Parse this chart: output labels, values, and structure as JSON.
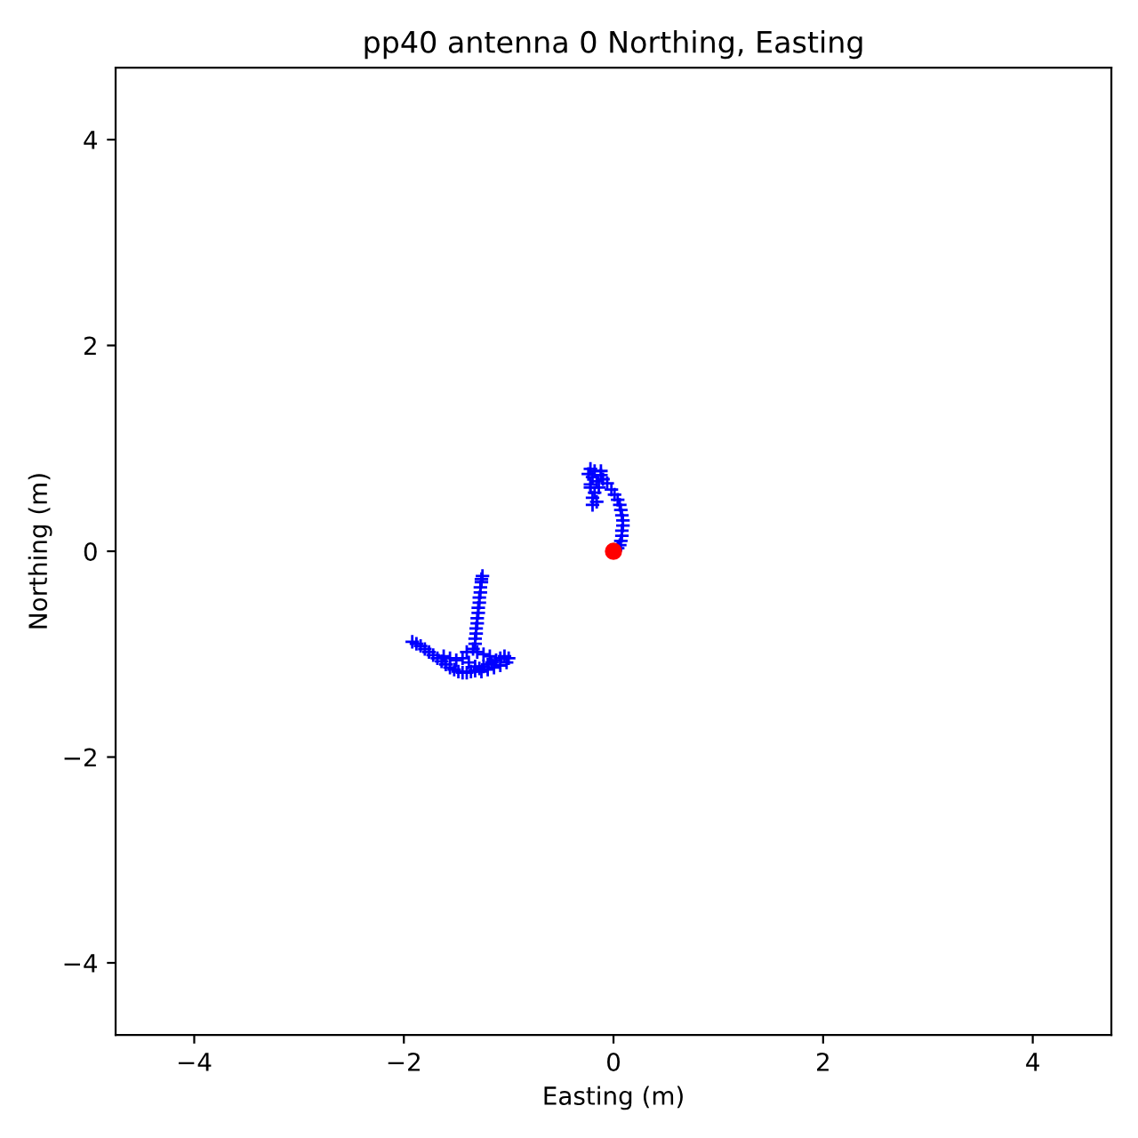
{
  "chart_data": {
    "type": "scatter",
    "title": "pp40 antenna 0 Northing, Easting",
    "xlabel": "Easting (m)",
    "ylabel": "Northing (m)",
    "xlim": [
      -4.75,
      4.75
    ],
    "ylim": [
      -4.7,
      4.7
    ],
    "xticks": [
      -4,
      -2,
      0,
      2,
      4
    ],
    "yticks": [
      -4,
      -2,
      0,
      2,
      4
    ],
    "series": [
      {
        "color": "#0000ff",
        "marker": "cross",
        "x": [
          -1.92,
          -1.88,
          -1.84,
          -1.8,
          -1.76,
          -1.72,
          -1.68,
          -1.64,
          -1.6,
          -1.56,
          -1.52,
          -1.48,
          -1.44,
          -1.4,
          -1.36,
          -1.32,
          -1.28,
          -1.24,
          -1.2,
          -1.16,
          -1.12,
          -1.08,
          -1.04,
          -1.0,
          -1.02,
          -1.08,
          -1.14,
          -1.2,
          -1.26,
          -1.32,
          -1.38,
          -1.44,
          -1.5,
          -1.56,
          -1.62,
          -1.4,
          -1.34,
          -1.3,
          -1.24,
          -1.18,
          -1.32,
          -1.32,
          -1.31,
          -1.31,
          -1.3,
          -1.3,
          -1.29,
          -1.29,
          -1.28,
          -1.28,
          -1.27,
          -1.27,
          -1.26,
          -1.26,
          -1.25,
          -0.22,
          -0.18,
          -0.2,
          -0.16,
          -0.22,
          -0.18,
          -0.2,
          -0.16,
          -0.12,
          -0.1,
          -0.06,
          -0.02,
          0.01,
          0.04,
          0.06,
          0.07,
          0.08,
          0.09,
          0.09,
          0.08,
          0.08,
          0.07,
          0.06,
          0.04,
          0.02,
          -0.24,
          -0.22,
          -0.14,
          -0.12,
          -0.2
        ],
        "values": [
          -0.88,
          -0.9,
          -0.92,
          -0.95,
          -0.98,
          -1.01,
          -1.04,
          -1.07,
          -1.1,
          -1.13,
          -1.15,
          -1.17,
          -1.18,
          -1.18,
          -1.17,
          -1.16,
          -1.14,
          -1.12,
          -1.1,
          -1.08,
          -1.06,
          -1.04,
          -1.02,
          -1.04,
          -1.08,
          -1.11,
          -1.13,
          -1.15,
          -1.17,
          -1.12,
          -1.08,
          -1.04,
          -1.06,
          -1.04,
          -1.02,
          -0.98,
          -0.95,
          -0.98,
          -1.0,
          -1.02,
          -0.9,
          -0.85,
          -0.8,
          -0.75,
          -0.7,
          -0.65,
          -0.6,
          -0.55,
          -0.5,
          -0.45,
          -0.4,
          -0.35,
          -0.3,
          -0.27,
          -0.24,
          0.8,
          0.78,
          0.72,
          0.68,
          0.62,
          0.57,
          0.52,
          0.48,
          0.74,
          0.7,
          0.66,
          0.6,
          0.55,
          0.5,
          0.45,
          0.4,
          0.35,
          0.3,
          0.25,
          0.2,
          0.15,
          0.1,
          0.06,
          0.03,
          0.01,
          0.75,
          0.65,
          0.62,
          0.78,
          0.45
        ]
      },
      {
        "color": "#ff0000",
        "marker": "circle",
        "x": [
          0.0
        ],
        "values": [
          0.0
        ]
      }
    ]
  }
}
